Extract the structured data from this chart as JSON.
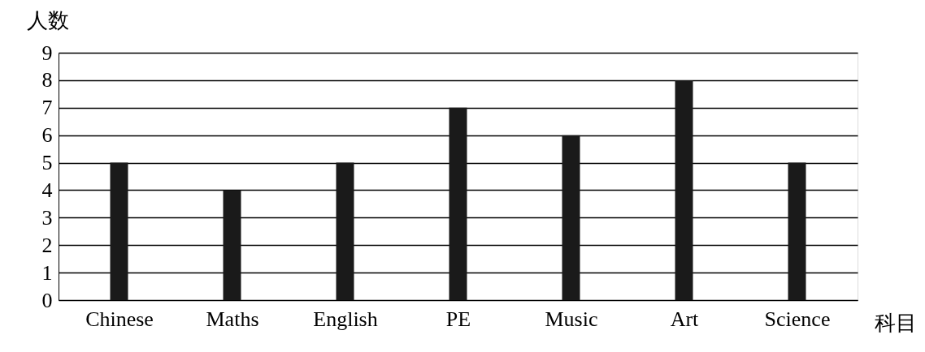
{
  "chart_data": {
    "type": "bar",
    "xlabel": "科目",
    "ylabel": "人数",
    "categories": [
      "Chinese",
      "Maths",
      "English",
      "PE",
      "Music",
      "Art",
      "Science"
    ],
    "values": [
      5,
      4,
      5,
      7,
      6,
      8,
      5
    ],
    "color": "#1a1a1a",
    "ylim": [
      0,
      9
    ],
    "yticks": [
      0,
      1,
      2,
      3,
      4,
      5,
      6,
      7,
      8,
      9
    ],
    "grid": "y"
  }
}
